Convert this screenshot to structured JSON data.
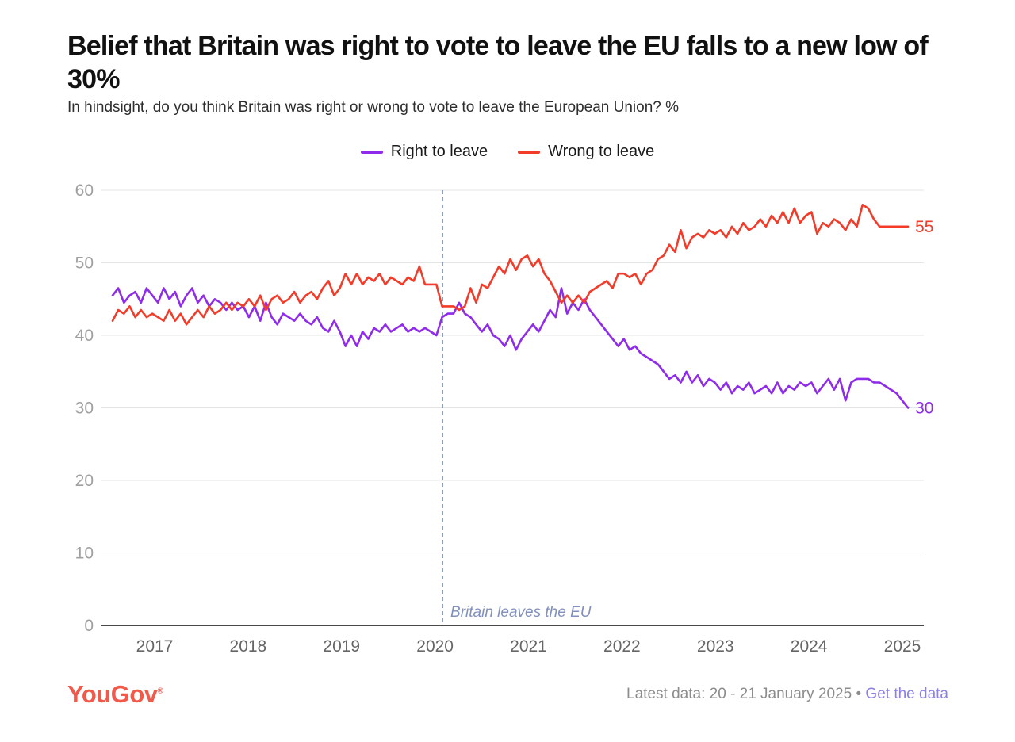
{
  "header": {
    "title": "Belief that Britain was right to vote to leave the EU falls to a new low of 30%",
    "subtitle": "In hindsight, do you think Britain was right or wrong to vote to leave the European Union? %"
  },
  "footer": {
    "logo_text": "YouGov",
    "logo_mark": "®",
    "note": "Latest data: 20 - 21 January 2025",
    "separator": "•",
    "link_label": "Get the data"
  },
  "colors": {
    "right_purple": "#8f2beb",
    "wrong_red": "#f43a28",
    "grid": "#e4e4e4",
    "zero_axis": "#4a4a4a",
    "y_tick": "#a0a0a0",
    "x_tick": "#666666",
    "event_line": "#6b7fa3",
    "event_text": "#8191bd"
  },
  "chart_data": {
    "type": "line",
    "title": "Belief that Britain was right to vote to leave the EU falls to a new low of 30%",
    "xlabel": "",
    "ylabel": "%",
    "ylim": [
      0,
      60
    ],
    "yticks": [
      0,
      10,
      20,
      30,
      40,
      50,
      60
    ],
    "xticks": [
      2017,
      2018,
      2019,
      2020,
      2021,
      2022,
      2023,
      2024,
      2025
    ],
    "grid": "horizontal",
    "legend_position": "top-center",
    "x_start": 2016.55,
    "x_end": 2025.06,
    "annotation": {
      "x": 2020.08,
      "label": "Britain leaves the EU"
    },
    "series": [
      {
        "name": "Right to leave",
        "color": "#8f2beb",
        "end_label": "30",
        "end_value": 30,
        "values": [
          45.5,
          46.5,
          44.5,
          45.5,
          46,
          44.5,
          46.5,
          45.5,
          44.5,
          46.5,
          45,
          46,
          44,
          45.5,
          46.5,
          44.5,
          45.5,
          44,
          45,
          44.5,
          43.5,
          44.5,
          43.5,
          44,
          42.5,
          44,
          42,
          44.5,
          42.5,
          41.5,
          43,
          42.5,
          42,
          43,
          42,
          41.5,
          42.5,
          41,
          40.5,
          42,
          40.5,
          38.5,
          40,
          38.5,
          40.5,
          39.5,
          41,
          40.5,
          41.5,
          40.5,
          41,
          41.5,
          40.5,
          41,
          40.5,
          41,
          40.5,
          40,
          42.5,
          43,
          43,
          44.5,
          43,
          42.5,
          41.5,
          40.5,
          41.5,
          40,
          39.5,
          38.5,
          40,
          38,
          39.5,
          40.5,
          41.5,
          40.5,
          42,
          43.5,
          42.5,
          46.5,
          43,
          44.5,
          43.5,
          45,
          43.5,
          42.5,
          41.5,
          40.5,
          39.5,
          38.5,
          39.5,
          38,
          38.5,
          37.5,
          37,
          36.5,
          36,
          35,
          34,
          34.5,
          33.5,
          35,
          33.5,
          34.5,
          33,
          34,
          33.5,
          32.5,
          33.5,
          32,
          33,
          32.5,
          33.5,
          32,
          32.5,
          33,
          32,
          33.5,
          32,
          33,
          32.5,
          33.5,
          33,
          33.5,
          32,
          33,
          34,
          32.5,
          34,
          31,
          33.5,
          34,
          34,
          34,
          33.5,
          33.5,
          33,
          32.5,
          32,
          31,
          30
        ]
      },
      {
        "name": "Wrong to leave",
        "color": "#f43a28",
        "end_label": "55",
        "end_value": 55,
        "values": [
          42,
          43.5,
          43,
          44,
          42.5,
          43.5,
          42.5,
          43,
          42.5,
          42,
          43.5,
          42,
          43,
          41.5,
          42.5,
          43.5,
          42.5,
          44,
          43,
          43.5,
          44.5,
          43.5,
          44.5,
          44,
          45,
          44,
          45.5,
          43.5,
          45,
          45.5,
          44.5,
          45,
          46,
          44.5,
          45.5,
          46,
          45,
          46.5,
          47.5,
          45.5,
          46.5,
          48.5,
          47,
          48.5,
          47,
          48,
          47.5,
          48.5,
          47,
          48,
          47.5,
          47,
          48,
          47.5,
          49.5,
          47,
          47,
          47,
          44,
          44,
          44,
          43.5,
          44,
          46.5,
          44.5,
          47,
          46.5,
          48,
          49.5,
          48.5,
          50.5,
          49,
          50.5,
          51,
          49.5,
          50.5,
          48.5,
          47.5,
          46,
          44.5,
          45.5,
          44.5,
          45.5,
          44.5,
          46,
          46.5,
          47,
          47.5,
          46.5,
          48.5,
          48.5,
          48,
          48.5,
          47,
          48.5,
          49,
          50.5,
          51,
          52.5,
          51.5,
          54.5,
          52,
          53.5,
          54,
          53.5,
          54.5,
          54,
          54.5,
          53.5,
          55,
          54,
          55.5,
          54.5,
          55,
          56,
          55,
          56.5,
          55.5,
          57,
          55.5,
          57.5,
          55.5,
          56.5,
          57,
          54,
          55.5,
          55,
          56,
          55.5,
          54.5,
          56,
          55,
          58,
          57.5,
          56,
          55,
          55,
          55,
          55,
          55,
          55
        ]
      }
    ]
  }
}
